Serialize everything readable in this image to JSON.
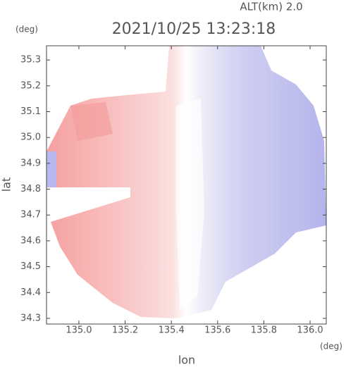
{
  "chart_data": {
    "type": "image",
    "title": "2021/10/25 13:23:18",
    "annotation": "ALT(km)  2.0",
    "x_label": "lon",
    "y_label": "lat",
    "x_unit": "(deg)",
    "y_unit": "(deg)",
    "xlim": [
      134.86,
      136.07
    ],
    "ylim": [
      34.278,
      35.355
    ],
    "xticks": [
      {
        "value": 135,
        "label": "135.0"
      },
      135.2,
      135.4,
      135.6,
      135.8,
      {
        "value": 136,
        "label": "136.0"
      }
    ],
    "yticks": [
      34.3,
      34.4,
      34.5,
      34.6,
      34.7,
      34.8,
      34.9,
      {
        "value": 35,
        "label": "35.0"
      },
      35.1,
      35.2,
      35.3
    ]
  }
}
